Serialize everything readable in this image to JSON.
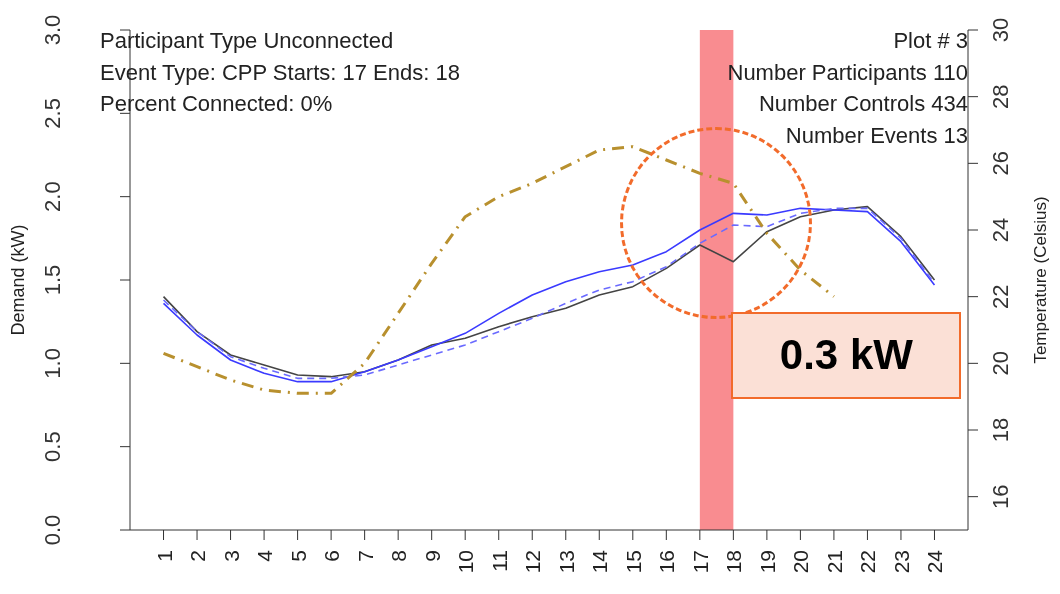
{
  "chart_data": {
    "type": "line",
    "ylabel": "Demand (kW)",
    "y2label": "Temperature (Celsius)",
    "x": [
      1,
      2,
      3,
      4,
      5,
      6,
      7,
      8,
      9,
      10,
      11,
      12,
      13,
      14,
      15,
      16,
      17,
      18,
      19,
      20,
      21,
      22,
      23,
      24
    ],
    "xlim": [
      0,
      25
    ],
    "xticks": [
      1,
      2,
      3,
      4,
      5,
      6,
      7,
      8,
      9,
      10,
      11,
      12,
      13,
      14,
      15,
      16,
      17,
      18,
      19,
      20,
      21,
      22,
      23,
      24
    ],
    "ylim": [
      0,
      3
    ],
    "yticks": [
      {
        "value": 0,
        "label": "0.0"
      },
      {
        "value": 0.5,
        "label": "0.5"
      },
      {
        "value": 1,
        "label": "1.0"
      },
      {
        "value": 1.5,
        "label": "1.5"
      },
      {
        "value": 2,
        "label": "2.0"
      },
      {
        "value": 2.5,
        "label": "2.5"
      },
      {
        "value": 3,
        "label": "3.0"
      }
    ],
    "y2lim": [
      15,
      30
    ],
    "y2ticks": [
      16,
      18,
      20,
      22,
      24,
      26,
      28,
      30
    ],
    "series": [
      {
        "color": "#444444",
        "line_style": "solid",
        "values": [
          1.4,
          1.19,
          1.05,
          0.99,
          0.93,
          0.92,
          0.95,
          1.02,
          1.11,
          1.15,
          1.22,
          1.28,
          1.33,
          1.41,
          1.46,
          1.57,
          1.71,
          1.61,
          1.79,
          1.88,
          1.92,
          1.94,
          1.76,
          1.5
        ]
      },
      {
        "color": "#3a3aff",
        "line_style": "solid",
        "values": [
          1.36,
          1.17,
          1.02,
          0.94,
          0.89,
          0.89,
          0.95,
          1.02,
          1.1,
          1.18,
          1.3,
          1.41,
          1.49,
          1.55,
          1.59,
          1.67,
          1.8,
          1.9,
          1.89,
          1.93,
          1.92,
          1.91,
          1.73,
          1.47
        ]
      },
      {
        "color": "#6a6aff",
        "line_style": "dashed",
        "values": [
          1.38,
          1.19,
          1.04,
          0.97,
          0.91,
          0.91,
          0.93,
          0.99,
          1.05,
          1.11,
          1.19,
          1.27,
          1.36,
          1.44,
          1.49,
          1.58,
          1.72,
          1.83,
          1.82,
          1.9,
          1.93,
          1.93,
          1.75,
          1.48
        ]
      },
      {
        "color": "#b8902e",
        "line_style": "dashed",
        "axis": "y2",
        "values": [
          20.3,
          19.9,
          19.5,
          19.2,
          19.1,
          19.1,
          20.0,
          21.5,
          23.0,
          24.4,
          25.0,
          25.4,
          25.9,
          26.4,
          26.5,
          26.1,
          25.7,
          25.4,
          23.9,
          22.8,
          22.0,
          null,
          null,
          null
        ]
      }
    ],
    "bands": [
      {
        "axis": "x",
        "from": 17,
        "to": 18,
        "color": "#f98c90"
      }
    ],
    "annotations": [
      "Participant Type Unconnected",
      "Event Type: CPP Starts:  17  Ends:  18",
      "Percent Connected: 0%",
      "Plot # 3",
      "Number Participants 110",
      "Number Controls 434",
      "Number Events 13",
      {
        "text": "0.3 kW",
        "x": 18,
        "y": 1.61
      }
    ]
  }
}
